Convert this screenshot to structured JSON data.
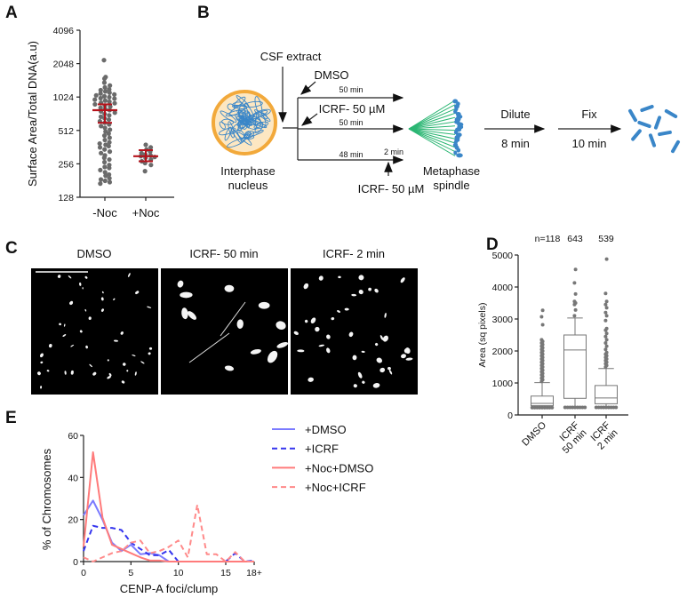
{
  "panels": {
    "a": "A",
    "b": "B",
    "c": "C",
    "d": "D",
    "e": "E"
  },
  "diagram": {
    "csf_extract": "CSF extract",
    "dmso": "DMSO",
    "icrf_top": "ICRF- 50 µM",
    "icrf_bottom": "ICRF- 50 µM",
    "t1": "50 min",
    "t2": "50 min",
    "t3": "48 min",
    "t4": "2 min",
    "nucleus_line1": "Interphase",
    "nucleus_line2": "nucleus",
    "spindle_line1": "Metaphase",
    "spindle_line2": "spindle",
    "dilute": "Dilute",
    "dilute_time": "8 min",
    "fix": "Fix",
    "fix_time": "10 min",
    "colors": {
      "nucleus": "#f2a93b",
      "dna": "#3a86c8",
      "spindle": "#2bb673"
    }
  },
  "micrographs": {
    "titles": [
      "DMSO",
      "ICRF- 50 min",
      "ICRF- 2 min"
    ]
  },
  "chart_data": [
    {
      "id": "A",
      "type": "scatter",
      "ylabel": "Surface Area/Total DNA(a.u)",
      "yscale": "log2",
      "ylim": [
        128,
        4096
      ],
      "yticks": [
        "128",
        "256",
        "512",
        "1024",
        "2048",
        "4096"
      ],
      "categories": [
        "-Noc",
        "+Noc"
      ],
      "series": [
        {
          "name": "-Noc",
          "mean": 780,
          "err": [
            600,
            880
          ],
          "values": [
            2200,
            1550,
            1500,
            1380,
            1300,
            1250,
            1200,
            1180,
            1150,
            1120,
            1100,
            1080,
            1060,
            1040,
            1020,
            1000,
            990,
            970,
            950,
            930,
            910,
            900,
            880,
            860,
            840,
            820,
            800,
            780,
            760,
            740,
            720,
            700,
            680,
            660,
            640,
            620,
            600,
            580,
            560,
            540,
            520,
            500,
            480,
            460,
            440,
            420,
            400,
            390,
            380,
            370,
            360,
            345,
            330,
            320,
            305,
            290,
            280,
            265,
            250,
            240,
            235,
            225,
            215,
            205,
            200,
            190,
            185,
            180,
            175,
            170
          ]
        },
        {
          "name": "+Noc",
          "mean": 300,
          "err": [
            270,
            340
          ],
          "values": [
            380,
            360,
            345,
            330,
            320,
            310,
            305,
            300,
            295,
            290,
            280,
            270,
            260,
            250,
            220
          ]
        }
      ],
      "colors": {
        "points": "#6b6b6b",
        "mean": "#b5121b"
      }
    },
    {
      "id": "D",
      "type": "box",
      "ylabel": "Area (sq pixels)",
      "ylim": [
        0,
        5000
      ],
      "yticks": [
        "0",
        "1000",
        "2000",
        "3000",
        "4000",
        "5000"
      ],
      "categories": [
        "DMSO",
        "ICRF\n50 min",
        "ICRF\n2 min"
      ],
      "category_lines": [
        [
          "DMSO"
        ],
        [
          "ICRF",
          "50 min"
        ],
        [
          "ICRF",
          "2 min"
        ]
      ],
      "n_labels": [
        "n=118",
        "643",
        "539"
      ],
      "boxes": [
        {
          "whisker_low": 200,
          "q1": 290,
          "median": 360,
          "q3": 590,
          "whisker_high": 1010,
          "outliers": [
            1050,
            1100,
            1150,
            1200,
            1250,
            1300,
            1350,
            1400,
            1450,
            1500,
            1550,
            1600,
            1650,
            1700,
            1750,
            1800,
            1850,
            1900,
            1950,
            2000,
            2050,
            2100,
            2150,
            2200,
            2250,
            2300,
            2350,
            2820,
            3070,
            3270
          ]
        },
        {
          "whisker_low": 210,
          "q1": 520,
          "median": 2030,
          "q3": 2500,
          "whisker_high": 3030,
          "outliers": [
            3100,
            3280,
            3450,
            3500,
            3550,
            3780,
            4130,
            4550
          ]
        },
        {
          "whisker_low": 210,
          "q1": 350,
          "median": 530,
          "q3": 920,
          "whisker_high": 1450,
          "outliers": [
            1500,
            1550,
            1600,
            1650,
            1700,
            1750,
            1800,
            1850,
            1900,
            1950,
            2050,
            2150,
            2250,
            2350,
            2450,
            2550,
            2650,
            2700,
            2950,
            3100,
            3200,
            3350,
            3450,
            3550,
            3800,
            4870
          ]
        }
      ],
      "colors": {
        "box": "#777777",
        "points": "#777777"
      }
    },
    {
      "id": "E",
      "type": "line",
      "xlabel": "CENP-A foci/clump",
      "ylabel": "% of Chromosomes",
      "xlim": [
        0,
        18
      ],
      "ylim": [
        0,
        60
      ],
      "xticks": [
        "0",
        "5",
        "10",
        "15",
        "18+"
      ],
      "yticks": [
        "0",
        "20",
        "40",
        "60"
      ],
      "x": [
        0,
        1,
        2,
        3,
        4,
        5,
        6,
        7,
        8,
        9,
        10,
        11,
        12,
        13,
        14,
        15,
        16,
        17,
        18
      ],
      "legend_position": "right",
      "series": [
        {
          "name": "+DMSO",
          "color": "#7b7bff",
          "dash": false,
          "values": [
            22,
            29,
            20,
            9,
            5,
            8,
            3.5,
            4,
            3,
            0,
            0,
            0,
            0,
            0,
            0,
            0,
            0,
            0,
            0
          ]
        },
        {
          "name": "+ICRF",
          "color": "#3535ee",
          "dash": true,
          "values": [
            5,
            17,
            16,
            16,
            15,
            9,
            6,
            3,
            3,
            5.5,
            0,
            0,
            0,
            0,
            0,
            0,
            4,
            0,
            0.5
          ]
        },
        {
          "name": "+Noc+DMSO",
          "color": "#ff7b7b",
          "dash": false,
          "values": [
            7,
            52,
            21,
            8,
            6,
            4,
            2,
            0.5,
            0.5,
            0,
            0,
            0,
            0,
            0,
            0,
            0,
            0,
            0,
            0
          ]
        },
        {
          "name": "+Noc+ICRF",
          "color": "#ff8a8a",
          "dash": true,
          "values": [
            2,
            0,
            2,
            4,
            5,
            9,
            10,
            4,
            5,
            7,
            10,
            2,
            27,
            3.5,
            3.5,
            0,
            4.5,
            0,
            0
          ]
        }
      ]
    }
  ]
}
